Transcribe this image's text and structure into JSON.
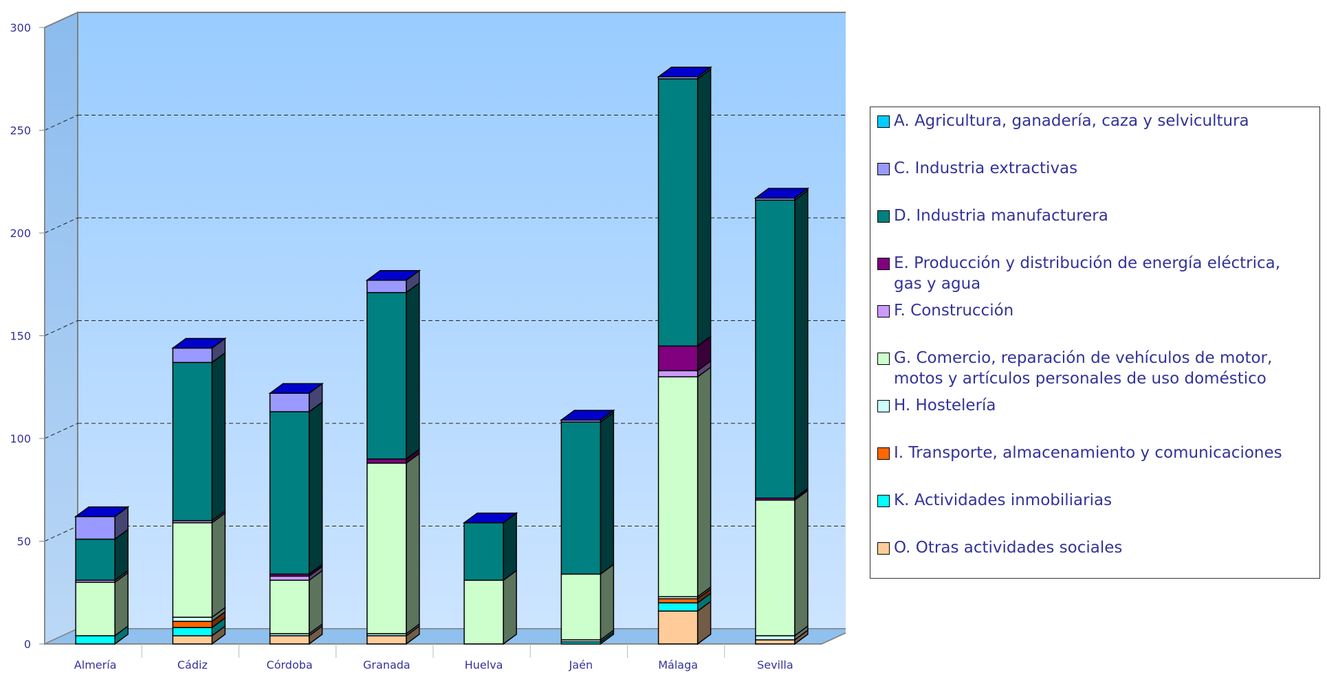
{
  "chart_data": {
    "type": "bar",
    "stacked": true,
    "three_d": true,
    "categories": [
      "Almería",
      "Cádiz",
      "Córdoba",
      "Granada",
      "Huelva",
      "Jaén",
      "Málaga",
      "Sevilla"
    ],
    "ylim": [
      0,
      300
    ],
    "yticks": [
      0,
      50,
      100,
      150,
      200,
      250,
      300
    ],
    "grid": true,
    "legend_position": "right",
    "series": [
      {
        "name": "O. Otras actividades sociales",
        "color": "#FFCC99",
        "values": [
          0,
          4,
          4,
          4,
          0,
          0,
          16,
          2
        ]
      },
      {
        "name": "K. Actividades inmobiliarias",
        "color": "#00FFFF",
        "values": [
          4,
          4,
          0,
          0,
          0,
          1,
          4,
          0
        ]
      },
      {
        "name": "I. Transporte, almacenamiento y comunicaciones",
        "color": "#FF6600",
        "values": [
          0,
          3,
          0,
          0,
          0,
          0,
          2,
          0
        ]
      },
      {
        "name": "H. Hostelería",
        "color": "#CCFFFF",
        "values": [
          0,
          2,
          1,
          1,
          0,
          1,
          1,
          2
        ]
      },
      {
        "name": "G. Comercio, reparación de vehículos de motor, motos y artículos personales de uso doméstico",
        "color": "#CCFFCC",
        "values": [
          26,
          46,
          26,
          83,
          31,
          32,
          107,
          66
        ]
      },
      {
        "name": "F. Construcción",
        "color": "#CC99FF",
        "values": [
          1,
          1,
          2,
          0,
          0,
          0,
          3,
          0
        ]
      },
      {
        "name": "E. Producción y distribución de energía eléctrica, gas y agua",
        "color": "#800080",
        "values": [
          0,
          0,
          1,
          2,
          0,
          0,
          12,
          1
        ]
      },
      {
        "name": "D. Industria manufacturera",
        "color": "#008080",
        "values": [
          20,
          77,
          79,
          81,
          28,
          74,
          130,
          145
        ]
      },
      {
        "name": "C. Industria extractivas",
        "color": "#9999FF",
        "values": [
          11,
          7,
          9,
          6,
          0,
          1,
          1,
          1
        ]
      },
      {
        "name": "A. Agricultura, ganadería, caza y selvicultura",
        "color": "#00CCFF",
        "values": [
          0,
          0,
          0,
          0,
          0,
          0,
          0,
          0
        ]
      }
    ]
  },
  "legend": [
    {
      "label": "A. Agricultura, ganadería, caza y selvicultura",
      "color": "#00CCFF"
    },
    {
      "label": "C. Industria extractivas",
      "color": "#9999FF"
    },
    {
      "label": "D. Industria manufacturera",
      "color": "#008080"
    },
    {
      "label": "E. Producción y distribución de energía eléctrica, gas y agua",
      "color": "#800080"
    },
    {
      "label": "F. Construcción",
      "color": "#CC99FF"
    },
    {
      "label": "G. Comercio, reparación de vehículos de motor, motos y artículos personales de uso doméstico",
      "color": "#CCFFCC"
    },
    {
      "label": "H. Hostelería",
      "color": "#CCFFFF"
    },
    {
      "label": "I. Transporte, almacenamiento y comunicaciones",
      "color": "#FF6600"
    },
    {
      "label": "K. Actividades inmobiliarias",
      "color": "#00FFFF"
    },
    {
      "label": "O. Otras actividades sociales",
      "color": "#FFCC99"
    }
  ],
  "top_cap_color": "#0000CC"
}
